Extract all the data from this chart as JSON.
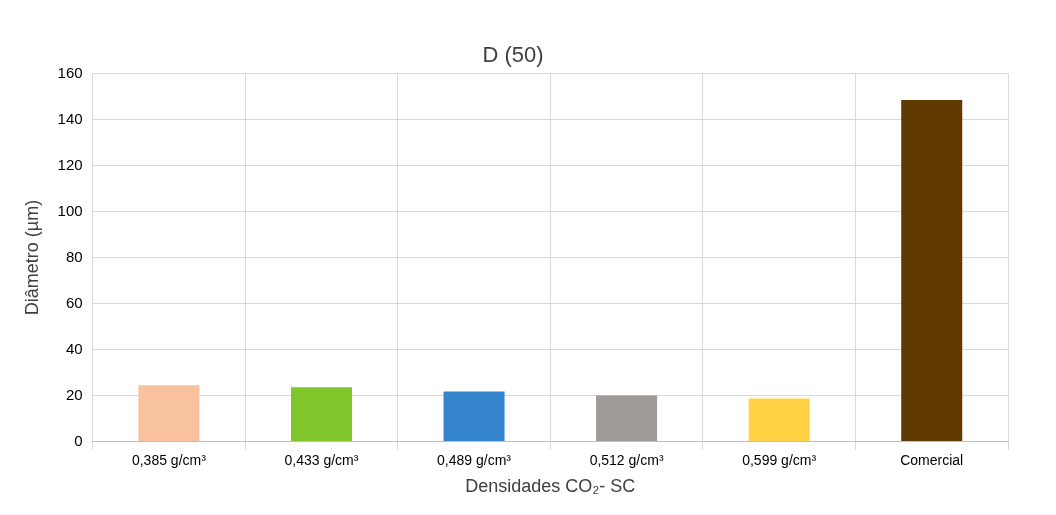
{
  "chart_data": {
    "type": "bar",
    "title": "D (50)",
    "xlabel": "Densidades CO₂- SC",
    "ylabel": "Diâmetro (µm)",
    "categories": [
      "0,385 g/cm³",
      "0,433 g/cm³",
      "0,489 g/cm³",
      "0,512 g/cm³",
      "0,599 g/cm³",
      "Comercial"
    ],
    "values": [
      24.5,
      23.6,
      21.8,
      20,
      18.7,
      148.4
    ],
    "colors": [
      "#f9c29f",
      "#7ec629",
      "#3485ce",
      "#9d9a98",
      "#ffd246",
      "#603a00"
    ],
    "ylim": [
      0,
      160
    ],
    "yticks": [
      0,
      20,
      40,
      60,
      80,
      100,
      120,
      140,
      160
    ],
    "grid": true
  }
}
